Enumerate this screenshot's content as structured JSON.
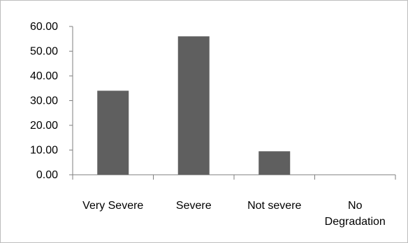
{
  "chart_data": {
    "type": "bar",
    "title": "",
    "xlabel": "",
    "ylabel": "",
    "categories": [
      "Very Severe",
      "Severe",
      "Not severe",
      "No Degradation"
    ],
    "category_label_lines": [
      [
        "Very Severe"
      ],
      [
        "Severe"
      ],
      [
        "Not severe"
      ],
      [
        "No",
        "Degradation"
      ]
    ],
    "values": [
      34.0,
      56.0,
      9.5,
      0.0
    ],
    "ylim": [
      0,
      60
    ],
    "yticks": [
      0,
      10,
      20,
      30,
      40,
      50,
      60
    ],
    "ytick_labels": [
      "0.00",
      "10.00",
      "20.00",
      "30.00",
      "40.00",
      "50.00",
      "60.00"
    ],
    "grid": false,
    "legend": "none",
    "colors": {
      "bar": "#5f5f5f",
      "axis": "#7f7f7f",
      "frame": "#bdbdbd"
    }
  }
}
